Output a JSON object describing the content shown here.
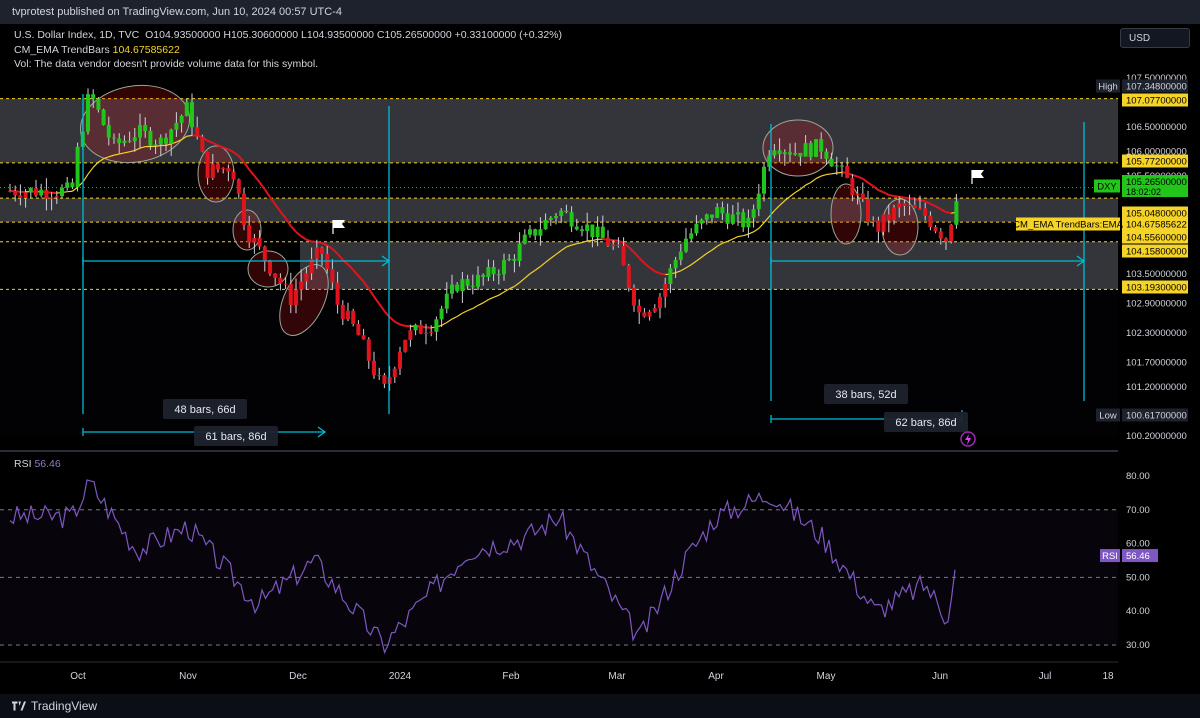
{
  "header": {
    "published": "tvprotest published on TradingView.com, Jun 10, 2024 00:57 UTC-4"
  },
  "symbol_legend": {
    "title": "U.S. Dollar Index, 1D, TVC",
    "ohlc": "O104.93500000  H105.30600000  L104.93500000  C105.26500000  +0.33100000 (+0.32%)",
    "indicator_name": "CM_EMA TrendBars",
    "indicator_value": "104.67585622",
    "volume_note": "Vol: The data vendor doesn't provide volume data for this symbol."
  },
  "currency_button": "USD",
  "price_axis": {
    "ticks": [
      "107.50000000",
      "106.50000000",
      "106.00000000",
      "105.50000000",
      "103.50000000",
      "102.90000000",
      "102.30000000",
      "101.70000000",
      "101.20000000",
      "100.20000000"
    ],
    "tags": [
      {
        "label": "High",
        "value": "107.34800000"
      },
      {
        "label": "",
        "value": "107.07700000"
      },
      {
        "label": "",
        "value": "105.77200000"
      },
      {
        "label": "DXY",
        "value": "105.26500000",
        "sub": "18:02:02"
      },
      {
        "label": "",
        "value": "105.04800000"
      },
      {
        "label": "CM_EMA TrendBars:EMA",
        "value": "104.67585622"
      },
      {
        "label": "",
        "value": "104.55600000"
      },
      {
        "label": "",
        "value": "104.15800000"
      },
      {
        "label": "",
        "value": "103.19300000"
      },
      {
        "label": "Low",
        "value": "100.61700000"
      }
    ]
  },
  "rsi": {
    "label": "RSI",
    "value": "56.46",
    "ticks": [
      "80.00",
      "70.00",
      "60.00",
      "50.00",
      "40.00",
      "30.00"
    ]
  },
  "time_axis": [
    "Oct",
    "Nov",
    "Dec",
    "2024",
    "Feb",
    "Mar",
    "Apr",
    "May",
    "Jun",
    "Jul",
    "18"
  ],
  "measurements": [
    {
      "text": "48 bars, 66d"
    },
    {
      "text": "61 bars, 86d"
    },
    {
      "text": "38 bars, 52d"
    },
    {
      "text": "62 bars, 86d"
    }
  ],
  "footer": {
    "brand": "TradingView"
  },
  "colors": {
    "bull": "#22c51a",
    "bear": "#e0141d",
    "accent": "#00bcd4",
    "rsi": "#7e57c2",
    "ema": "#f5d327",
    "zone": "#5d606b"
  },
  "chart_data": {
    "type": "candlestick",
    "symbol": "DXY",
    "y_range": [
      100.2,
      107.5
    ],
    "close_path": [
      [
        "Sep 20",
        105.2
      ],
      [
        "Sep 27",
        106.2
      ],
      [
        "Oct 3",
        107.2
      ],
      [
        "Oct 10",
        106.1
      ],
      [
        "Oct 17",
        106.4
      ],
      [
        "Oct 24",
        106.2
      ],
      [
        "Nov 1",
        106.9
      ],
      [
        "Nov 6",
        105.6
      ],
      [
        "Nov 13",
        105.7
      ],
      [
        "Nov 17",
        104.4
      ],
      [
        "Nov 23",
        103.7
      ],
      [
        "Nov 29",
        103.0
      ],
      [
        "Dec 4",
        103.6
      ],
      [
        "Dec 8",
        104.0
      ],
      [
        "Dec 13",
        102.9
      ],
      [
        "Dec 19",
        102.3
      ],
      [
        "Dec 27",
        101.1
      ],
      [
        "Jan 2",
        102.2
      ],
      [
        "Jan 10",
        102.5
      ],
      [
        "Jan 17",
        103.3
      ],
      [
        "Jan 24",
        103.4
      ],
      [
        "Feb 1",
        103.8
      ],
      [
        "Feb 5",
        104.2
      ],
      [
        "Feb 14",
        104.8
      ],
      [
        "Feb 21",
        104.5
      ],
      [
        "Mar 1",
        104.0
      ],
      [
        "Mar 8",
        102.7
      ],
      [
        "Mar 14",
        103.0
      ],
      [
        "Mar 22",
        104.2
      ],
      [
        "Apr 1",
        104.8
      ],
      [
        "Apr 10",
        104.5
      ],
      [
        "Apr 16",
        106.2
      ],
      [
        "Apr 22",
        106.0
      ],
      [
        "Apr 30",
        106.1
      ],
      [
        "May 8",
        105.3
      ],
      [
        "May 15",
        104.4
      ],
      [
        "May 22",
        104.9
      ],
      [
        "May 29",
        104.7
      ],
      [
        "Jun 4",
        104.2
      ],
      [
        "Jun 7",
        105.265
      ]
    ],
    "zones": [
      [
        105.77,
        107.08
      ],
      [
        104.56,
        105.05
      ],
      [
        103.19,
        104.16
      ]
    ],
    "rsi_path": [
      [
        "Sep 20",
        68
      ],
      [
        "Oct 3",
        78
      ],
      [
        "Oct 17",
        58
      ],
      [
        "Nov 1",
        65
      ],
      [
        "Nov 20",
        42
      ],
      [
        "Dec 6",
        55
      ],
      [
        "Dec 27",
        30
      ],
      [
        "Jan 20",
        58
      ],
      [
        "Feb 5",
        62
      ],
      [
        "Feb 14",
        68
      ],
      [
        "Mar 8",
        32
      ],
      [
        "Mar 22",
        55
      ],
      [
        "Apr 1",
        68
      ],
      [
        "Apr 16",
        75
      ],
      [
        "Apr 30",
        62
      ],
      [
        "May 15",
        40
      ],
      [
        "May 29",
        48
      ],
      [
        "Jun 4",
        38
      ],
      [
        "Jun 7",
        56.46
      ]
    ],
    "rsi_range": [
      25,
      85
    ]
  }
}
